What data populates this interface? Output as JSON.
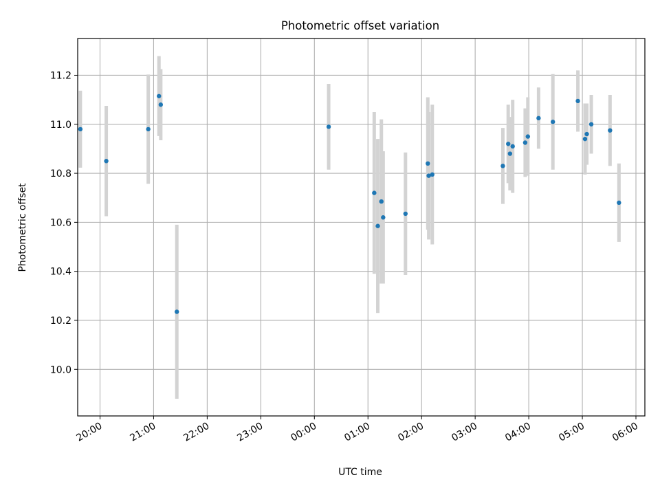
{
  "chart_data": {
    "type": "scatter",
    "title": "Photometric offset variation",
    "xlabel": "UTC time",
    "ylabel": "Photometric offset",
    "xlim": [
      "19:35",
      "06:10"
    ],
    "ylim": [
      9.81,
      11.35
    ],
    "x_ticks": [
      "20:00",
      "21:00",
      "22:00",
      "23:00",
      "00:00",
      "01:00",
      "02:00",
      "03:00",
      "04:00",
      "05:00",
      "06:00"
    ],
    "y_ticks": [
      "10.0",
      "10.2",
      "10.4",
      "10.6",
      "10.8",
      "11.0",
      "11.2"
    ],
    "grid": true,
    "marker_color": "#1f77b4",
    "errorbar_color": "#d3d3d3",
    "points": [
      {
        "x": "19:38",
        "y": 10.98,
        "err": 0.157
      },
      {
        "x": "20:07",
        "y": 10.85,
        "err": 0.225
      },
      {
        "x": "20:54",
        "y": 10.98,
        "err": 0.223
      },
      {
        "x": "21:06",
        "y": 11.115,
        "err": 0.163
      },
      {
        "x": "21:08",
        "y": 11.08,
        "err": 0.145
      },
      {
        "x": "21:26",
        "y": 10.235,
        "err": 0.355
      },
      {
        "x": "00:16",
        "y": 10.99,
        "err": 0.175
      },
      {
        "x": "01:07",
        "y": 10.72,
        "err": 0.33
      },
      {
        "x": "01:11",
        "y": 10.585,
        "err": 0.355
      },
      {
        "x": "01:15",
        "y": 10.685,
        "err": 0.335
      },
      {
        "x": "01:17",
        "y": 10.62,
        "err": 0.27
      },
      {
        "x": "01:42",
        "y": 10.635,
        "err": 0.25
      },
      {
        "x": "02:07",
        "y": 10.84,
        "err": 0.27
      },
      {
        "x": "02:08",
        "y": 10.79,
        "err": 0.26
      },
      {
        "x": "02:12",
        "y": 10.795,
        "err": 0.285
      },
      {
        "x": "03:31",
        "y": 10.83,
        "err": 0.155
      },
      {
        "x": "03:37",
        "y": 10.92,
        "err": 0.16
      },
      {
        "x": "03:39",
        "y": 10.88,
        "err": 0.15
      },
      {
        "x": "03:42",
        "y": 10.91,
        "err": 0.19
      },
      {
        "x": "03:56",
        "y": 10.925,
        "err": 0.14
      },
      {
        "x": "03:59",
        "y": 10.95,
        "err": 0.16
      },
      {
        "x": "04:11",
        "y": 11.025,
        "err": 0.125
      },
      {
        "x": "04:27",
        "y": 11.01,
        "err": 0.195
      },
      {
        "x": "04:55",
        "y": 11.095,
        "err": 0.125
      },
      {
        "x": "05:03",
        "y": 10.94,
        "err": 0.145
      },
      {
        "x": "05:05",
        "y": 10.96,
        "err": 0.125
      },
      {
        "x": "05:10",
        "y": 11.0,
        "err": 0.12
      },
      {
        "x": "05:31",
        "y": 10.975,
        "err": 0.145
      },
      {
        "x": "05:41",
        "y": 10.68,
        "err": 0.16
      }
    ]
  }
}
